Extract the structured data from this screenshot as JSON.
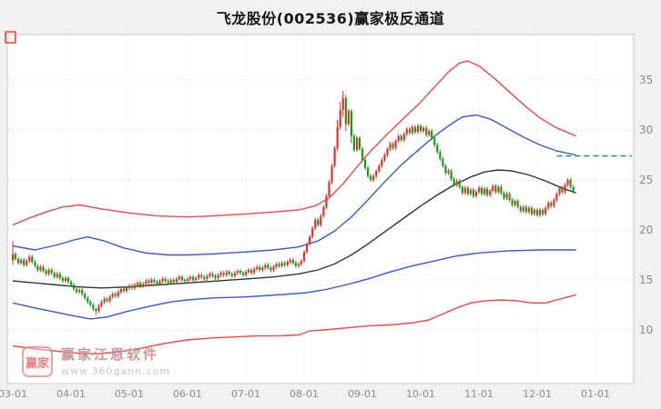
{
  "page": {
    "title": "飞龙股份(002536)赢家极反通道"
  },
  "watermark": {
    "logo_text": "赢家",
    "brand": "赢家江恩软件",
    "url": "www.360gann.com"
  },
  "chart_data": {
    "type": "candlestick",
    "title": "飞龙股份(002536)赢家极反通道",
    "xlabel": "",
    "ylabel": "",
    "ylim": [
      5,
      40
    ],
    "grid": true,
    "y_axis_side": "right",
    "y_ticks": [
      10,
      15,
      20,
      25,
      30,
      35
    ],
    "x_ticks": [
      {
        "label": "03-01",
        "day": 0
      },
      {
        "label": "04-01",
        "day": 21
      },
      {
        "label": "05-01",
        "day": 42
      },
      {
        "label": "06-01",
        "day": 63
      },
      {
        "label": "07-01",
        "day": 84
      },
      {
        "label": "08-01",
        "day": 105
      },
      {
        "label": "09-01",
        "day": 126
      },
      {
        "label": "10-01",
        "day": 147
      },
      {
        "label": "11-01",
        "day": 168
      },
      {
        "label": "12-01",
        "day": 189
      },
      {
        "label": "01-01",
        "day": 210
      }
    ],
    "colors": {
      "up": "#e62e2e",
      "down": "#189c18",
      "grid": "#cccccc",
      "grid_vertical": "#e4e4e4",
      "axis_text": "#8a8a8a",
      "band_red": "#ef4646",
      "band_blue": "#3b55d4",
      "band_black": "#333333",
      "ref_green": "#00a040"
    },
    "candles": {
      "first_open": 17.0,
      "default_wick": 0.2,
      "closes": [
        17.6,
        17.1,
        16.7,
        17.0,
        16.5,
        16.9,
        17.3,
        16.8,
        16.4,
        16.0,
        16.3,
        15.9,
        15.6,
        16.0,
        15.7,
        15.3,
        15.6,
        15.2,
        14.9,
        15.2,
        14.8,
        14.5,
        14.1,
        13.8,
        14.0,
        13.6,
        13.2,
        12.8,
        12.5,
        12.1,
        11.9,
        12.4,
        12.8,
        13.1,
        12.9,
        13.3,
        13.6,
        13.4,
        13.8,
        14.1,
        13.9,
        14.2,
        14.4,
        14.2,
        14.5,
        14.7,
        14.4,
        14.6,
        14.9,
        14.7,
        15.0,
        14.8,
        14.6,
        14.9,
        15.1,
        14.9,
        14.7,
        15.0,
        14.8,
        15.1,
        15.3,
        15.0,
        14.9,
        15.1,
        15.3,
        15.0,
        15.2,
        15.5,
        15.3,
        15.1,
        15.4,
        15.6,
        15.4,
        15.2,
        15.5,
        15.7,
        15.5,
        15.8,
        15.6,
        15.4,
        15.7,
        15.9,
        15.7,
        15.5,
        15.8,
        16.0,
        15.7,
        16.1,
        16.3,
        16.0,
        16.2,
        16.5,
        16.2,
        16.0,
        16.3,
        16.6,
        16.4,
        16.7,
        16.5,
        16.8,
        17.0,
        16.7,
        16.4,
        16.6,
        16.9,
        17.8,
        18.6,
        19.3,
        20.2,
        21.0,
        20.5,
        21.4,
        22.3,
        23.4,
        24.8,
        26.4,
        28.2,
        30.3,
        32.0,
        33.2,
        30.6,
        31.9,
        29.4,
        28.0,
        29.2,
        28.1,
        27.0,
        26.2,
        25.4,
        25.0,
        25.4,
        25.9,
        26.4,
        27.0,
        27.5,
        28.1,
        28.6,
        28.2,
        28.9,
        29.4,
        29.0,
        29.6,
        30.1,
        29.7,
        30.3,
        29.8,
        30.4,
        29.9,
        30.2,
        29.5,
        29.9,
        29.2,
        28.5,
        27.8,
        27.1,
        26.4,
        25.7,
        25.9,
        25.1,
        24.5,
        24.9,
        24.3,
        23.7,
        24.2,
        23.6,
        24.0,
        23.4,
        23.8,
        24.2,
        23.6,
        24.1,
        23.5,
        23.9,
        24.4,
        23.8,
        24.3,
        23.7,
        23.2,
        23.6,
        23.0,
        22.5,
        22.9,
        22.3,
        21.9,
        22.3,
        21.8,
        22.2,
        21.6,
        22.0,
        21.5,
        22.0,
        21.6,
        22.2,
        22.7,
        22.4,
        23.0,
        23.6,
        24.2,
        23.8,
        24.5,
        25.0,
        24.3,
        23.9
      ],
      "wick_overrides": {
        "0": [
          18.9,
          16.5
        ],
        "30": [
          12.2,
          11.5
        ],
        "117": [
          31.0,
          27.9
        ],
        "118": [
          32.8,
          30.0
        ],
        "119": [
          33.9,
          31.3
        ],
        "120": [
          33.5,
          29.9
        ],
        "122": [
          32.1,
          28.7
        ]
      }
    },
    "bands": [
      {
        "name": "upper-red",
        "color": "#ef4646",
        "points": [
          [
            0,
            20.5
          ],
          [
            6,
            21.2
          ],
          [
            12,
            21.8
          ],
          [
            18,
            22.3
          ],
          [
            24,
            22.5
          ],
          [
            32,
            22.1
          ],
          [
            42,
            21.7
          ],
          [
            52,
            21.4
          ],
          [
            63,
            21.3
          ],
          [
            72,
            21.4
          ],
          [
            84,
            21.6
          ],
          [
            94,
            21.8
          ],
          [
            103,
            22.0
          ],
          [
            109,
            22.4
          ],
          [
            114,
            23.2
          ],
          [
            119,
            24.6
          ],
          [
            124,
            26.3
          ],
          [
            129,
            27.9
          ],
          [
            135,
            29.6
          ],
          [
            141,
            31.2
          ],
          [
            147,
            32.8
          ],
          [
            152,
            34.3
          ],
          [
            157,
            35.8
          ],
          [
            161,
            36.7
          ],
          [
            164,
            36.9
          ],
          [
            168,
            36.4
          ],
          [
            173,
            35.3
          ],
          [
            179,
            33.8
          ],
          [
            185,
            32.3
          ],
          [
            190,
            31.2
          ],
          [
            196,
            30.2
          ],
          [
            203,
            29.4
          ]
        ]
      },
      {
        "name": "upper-blue",
        "color": "#3b55d4",
        "points": [
          [
            0,
            18.4
          ],
          [
            8,
            18.0
          ],
          [
            16,
            18.5
          ],
          [
            22,
            19.0
          ],
          [
            27,
            19.3
          ],
          [
            33,
            18.9
          ],
          [
            40,
            18.2
          ],
          [
            48,
            17.7
          ],
          [
            56,
            17.5
          ],
          [
            63,
            17.5
          ],
          [
            72,
            17.6
          ],
          [
            84,
            17.8
          ],
          [
            94,
            18.0
          ],
          [
            103,
            18.3
          ],
          [
            110,
            18.9
          ],
          [
            116,
            19.9
          ],
          [
            122,
            21.3
          ],
          [
            128,
            23.0
          ],
          [
            134,
            24.8
          ],
          [
            140,
            26.5
          ],
          [
            147,
            28.2
          ],
          [
            153,
            29.6
          ],
          [
            158,
            30.6
          ],
          [
            162,
            31.3
          ],
          [
            167,
            31.5
          ],
          [
            172,
            31.1
          ],
          [
            178,
            30.2
          ],
          [
            184,
            29.3
          ],
          [
            190,
            28.5
          ],
          [
            196,
            27.9
          ],
          [
            203,
            27.5
          ]
        ]
      },
      {
        "name": "middle-black",
        "color": "#333333",
        "points": [
          [
            0,
            14.9
          ],
          [
            8,
            14.7
          ],
          [
            16,
            14.5
          ],
          [
            24,
            14.3
          ],
          [
            32,
            14.2
          ],
          [
            42,
            14.3
          ],
          [
            52,
            14.5
          ],
          [
            63,
            14.7
          ],
          [
            74,
            14.9
          ],
          [
            84,
            15.1
          ],
          [
            94,
            15.3
          ],
          [
            103,
            15.6
          ],
          [
            110,
            16.0
          ],
          [
            116,
            16.6
          ],
          [
            122,
            17.5
          ],
          [
            128,
            18.6
          ],
          [
            134,
            19.8
          ],
          [
            140,
            21.0
          ],
          [
            147,
            22.4
          ],
          [
            153,
            23.5
          ],
          [
            159,
            24.5
          ],
          [
            165,
            25.3
          ],
          [
            170,
            25.8
          ],
          [
            175,
            26.0
          ],
          [
            180,
            25.9
          ],
          [
            186,
            25.5
          ],
          [
            192,
            24.9
          ],
          [
            197,
            24.3
          ],
          [
            203,
            23.7
          ]
        ]
      },
      {
        "name": "lower-blue",
        "color": "#3b55d4",
        "points": [
          [
            0,
            12.7
          ],
          [
            8,
            12.2
          ],
          [
            15,
            11.8
          ],
          [
            22,
            11.4
          ],
          [
            28,
            11.1
          ],
          [
            34,
            11.3
          ],
          [
            42,
            11.9
          ],
          [
            50,
            12.4
          ],
          [
            57,
            12.8
          ],
          [
            63,
            13.0
          ],
          [
            72,
            13.2
          ],
          [
            84,
            13.3
          ],
          [
            95,
            13.5
          ],
          [
            105,
            13.7
          ],
          [
            112,
            14.0
          ],
          [
            120,
            14.5
          ],
          [
            128,
            15.1
          ],
          [
            136,
            15.8
          ],
          [
            144,
            16.4
          ],
          [
            152,
            16.9
          ],
          [
            160,
            17.4
          ],
          [
            168,
            17.7
          ],
          [
            178,
            17.9
          ],
          [
            190,
            18.0
          ],
          [
            203,
            18.0
          ]
        ]
      },
      {
        "name": "lower-red",
        "color": "#ef4646",
        "points": [
          [
            0,
            8.4
          ],
          [
            8,
            8.1
          ],
          [
            15,
            7.9
          ],
          [
            22,
            7.7
          ],
          [
            30,
            7.6
          ],
          [
            38,
            7.8
          ],
          [
            45,
            8.1
          ],
          [
            52,
            8.5
          ],
          [
            58,
            8.8
          ],
          [
            63,
            9.0
          ],
          [
            72,
            9.2
          ],
          [
            80,
            9.3
          ],
          [
            88,
            9.4
          ],
          [
            96,
            9.4
          ],
          [
            103,
            9.5
          ],
          [
            107,
            9.9
          ],
          [
            112,
            10.0
          ],
          [
            120,
            10.2
          ],
          [
            128,
            10.4
          ],
          [
            136,
            10.5
          ],
          [
            144,
            10.7
          ],
          [
            150,
            11.0
          ],
          [
            155,
            11.6
          ],
          [
            160,
            12.2
          ],
          [
            165,
            12.7
          ],
          [
            170,
            12.9
          ],
          [
            176,
            13.0
          ],
          [
            182,
            12.9
          ],
          [
            187,
            12.7
          ],
          [
            192,
            12.7
          ],
          [
            196,
            13.0
          ],
          [
            200,
            13.3
          ],
          [
            203,
            13.5
          ]
        ]
      }
    ],
    "ref_line": {
      "price": 27.4,
      "from_day": 196,
      "style": "dashed",
      "color": "#00a040"
    }
  }
}
